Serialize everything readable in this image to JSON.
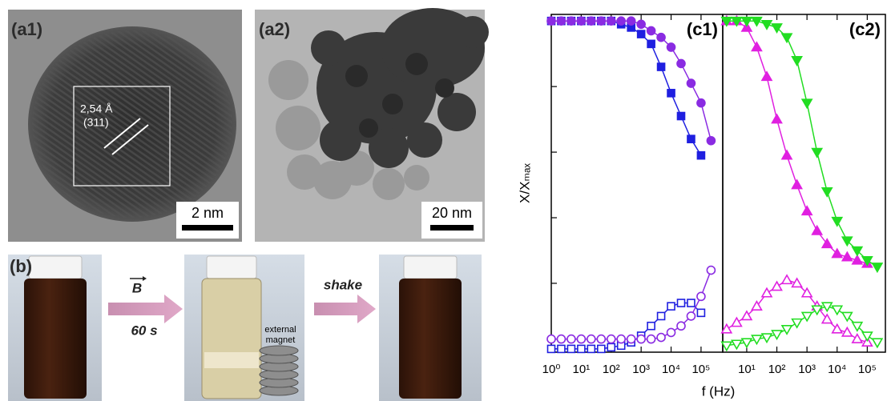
{
  "panels": {
    "a1": {
      "label": "(a1)",
      "d_spacing": "2,54 Å",
      "plane": "(311)",
      "scale_bar": "2 nm"
    },
    "a2": {
      "label": "(a2)",
      "scale_bar": "20 nm"
    },
    "b": {
      "label": "(b)",
      "field": "B",
      "time": "60 s",
      "action": "shake",
      "magnet": [
        "external",
        "magnet"
      ]
    }
  },
  "chart_data": [
    {
      "type": "line",
      "title": "(c1)",
      "xlabel": "f (Hz)",
      "ylabel": "X/Xₘₐₓ",
      "xscale": "log",
      "grid": false,
      "x": [
        1,
        2.15,
        4.64,
        10,
        21.5,
        46.4,
        100,
        215,
        464,
        1000,
        2154,
        4642,
        10000,
        21544,
        46416,
        100000,
        215443
      ],
      "xlim": [
        1,
        530000
      ],
      "ylim": [
        -0.01,
        1.02
      ],
      "xticks": [
        {
          "value": 1,
          "label": "10⁰"
        },
        {
          "value": 10,
          "label": "10¹"
        },
        {
          "value": 100,
          "label": "10²"
        },
        {
          "value": 1000,
          "label": "10³"
        },
        {
          "value": 10000,
          "label": "10⁴"
        },
        {
          "value": 100000,
          "label": "10⁵"
        }
      ],
      "yticks": [
        0,
        0.2,
        0.4,
        0.6,
        0.8,
        1
      ],
      "series": [
        {
          "color": "#1f1fe0",
          "marker": "square",
          "filled": true,
          "values": [
            1,
            1,
            1,
            1,
            1,
            1,
            1,
            0.99,
            0.98,
            0.96,
            0.93,
            0.86,
            0.78,
            0.71,
            0.64,
            0.59,
            null
          ]
        },
        {
          "color": "#8a2be2",
          "marker": "circle",
          "filled": true,
          "values": [
            1,
            1,
            1,
            1,
            1,
            1,
            1,
            1,
            1,
            0.99,
            0.97,
            0.95,
            0.92,
            0.87,
            0.81,
            0.75,
            0.635
          ]
        },
        {
          "color": "#1f1fe0",
          "marker": "square",
          "filled": false,
          "values": [
            0,
            0,
            0,
            0,
            0,
            0,
            0.005,
            0.01,
            0.02,
            0.04,
            0.07,
            0.1,
            0.13,
            0.14,
            0.14,
            0.11,
            null
          ]
        },
        {
          "color": "#8a2be2",
          "marker": "circle",
          "filled": false,
          "values": [
            0.03,
            0.03,
            0.03,
            0.03,
            0.03,
            0.03,
            0.03,
            0.03,
            0.03,
            0.03,
            0.03,
            0.035,
            0.05,
            0.07,
            0.1,
            0.16,
            0.24
          ]
        }
      ]
    },
    {
      "type": "line",
      "title": "(c2)",
      "xscale": "log",
      "grid": false,
      "x": [
        2.15,
        4.64,
        10,
        21.5,
        46.4,
        100,
        215,
        464,
        1000,
        2154,
        4642,
        10000,
        21544,
        46416,
        100000,
        215443
      ],
      "xlim": [
        1.6,
        400000
      ],
      "ylim": [
        -0.01,
        1.02
      ],
      "xticks": [
        {
          "value": 10,
          "label": "10¹"
        },
        {
          "value": 100,
          "label": "10²"
        },
        {
          "value": 1000,
          "label": "10³"
        },
        {
          "value": 10000,
          "label": "10⁴"
        },
        {
          "value": 100000,
          "label": "10⁵"
        }
      ],
      "series": [
        {
          "color": "#e020e0",
          "marker": "triangle-up",
          "filled": true,
          "values": [
            1,
            1,
            0.98,
            0.92,
            0.83,
            0.7,
            0.59,
            0.5,
            0.42,
            0.36,
            0.32,
            0.29,
            0.28,
            0.27,
            0.26,
            null
          ]
        },
        {
          "color": "#22dd22",
          "marker": "triangle-down",
          "filled": true,
          "values": [
            1,
            1,
            1,
            1,
            0.99,
            0.98,
            0.95,
            0.88,
            0.75,
            0.6,
            0.48,
            0.39,
            0.33,
            0.3,
            0.27,
            0.25
          ]
        },
        {
          "color": "#e020e0",
          "marker": "triangle-up",
          "filled": false,
          "values": [
            0.06,
            0.08,
            0.1,
            0.13,
            0.17,
            0.19,
            0.21,
            0.2,
            0.17,
            0.13,
            0.09,
            0.06,
            0.05,
            0.03,
            0.02,
            null
          ]
        },
        {
          "color": "#22dd22",
          "marker": "triangle-down",
          "filled": false,
          "values": [
            0.01,
            0.015,
            0.02,
            0.03,
            0.035,
            0.045,
            0.06,
            0.08,
            0.1,
            0.12,
            0.13,
            0.12,
            0.1,
            0.07,
            0.04,
            0.02
          ]
        }
      ]
    }
  ]
}
